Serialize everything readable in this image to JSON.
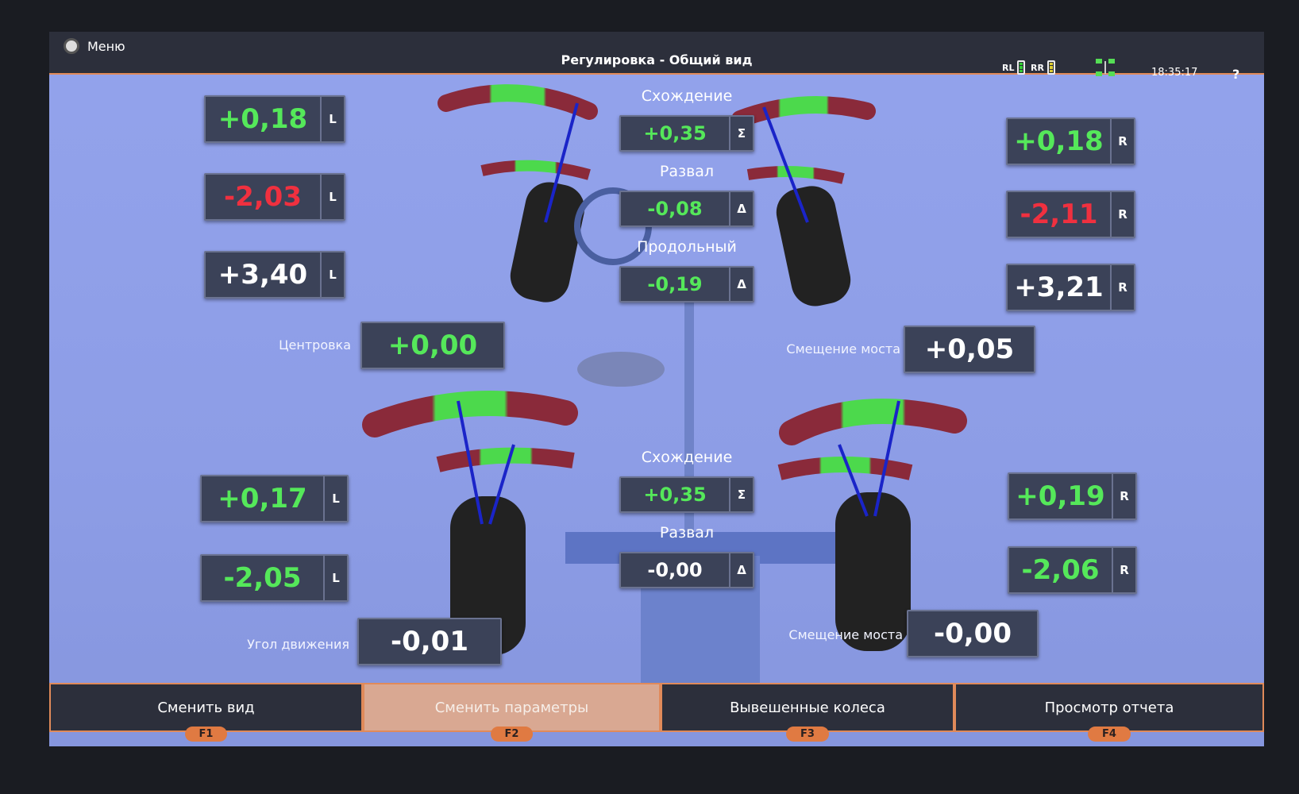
{
  "header": {
    "menu_label": "Меню",
    "title": "Регулировка - Общий вид",
    "battery_left": "RL",
    "battery_right": "RR",
    "time": "18:35:17",
    "help": "?"
  },
  "front": {
    "left": [
      {
        "value": "+0,18",
        "side": "L",
        "color": "green"
      },
      {
        "value": "-2,03",
        "side": "L",
        "color": "red"
      },
      {
        "value": "+3,40",
        "side": "L",
        "color": "white"
      }
    ],
    "right": [
      {
        "value": "+0,18",
        "side": "R",
        "color": "green"
      },
      {
        "value": "-2,11",
        "side": "R",
        "color": "red"
      },
      {
        "value": "+3,21",
        "side": "R",
        "color": "white"
      }
    ],
    "toe_label": "Схождение",
    "toe_value": "+0,35",
    "toe_symbol": "Σ",
    "camber_label": "Развал",
    "camber_value": "-0,08",
    "camber_symbol": "Δ",
    "caster_label": "Продольный",
    "caster_value": "-0,19",
    "caster_symbol": "Δ",
    "centering_label": "Центровка",
    "centering_value": "+0,00",
    "setback_label": "Смещение моста",
    "setback_value": "+0,05"
  },
  "rear": {
    "left": [
      {
        "value": "+0,17",
        "side": "L",
        "color": "green"
      },
      {
        "value": "-2,05",
        "side": "L",
        "color": "green"
      }
    ],
    "right": [
      {
        "value": "+0,19",
        "side": "R",
        "color": "green"
      },
      {
        "value": "-2,06",
        "side": "R",
        "color": "green"
      }
    ],
    "toe_label": "Схождение",
    "toe_value": "+0,35",
    "toe_symbol": "Σ",
    "camber_label": "Развал",
    "camber_value": "-0,00",
    "camber_symbol": "Δ",
    "thrust_label": "Угол движения",
    "thrust_value": "-0,01",
    "setback_label": "Смещение моста",
    "setback_value": "-0,00"
  },
  "footer": [
    {
      "label": "Сменить вид",
      "key": "F1"
    },
    {
      "label": "Сменить параметры",
      "key": "F2"
    },
    {
      "label": "Вывешенные колеса",
      "key": "F3"
    },
    {
      "label": "Просмотр отчета",
      "key": "F4"
    }
  ],
  "colors": {
    "background": "#8d9de6",
    "box": "#3b4258",
    "in_tolerance": "#55e85a",
    "out_of_tolerance": "#f0303f",
    "accent": "#e08a5a"
  }
}
